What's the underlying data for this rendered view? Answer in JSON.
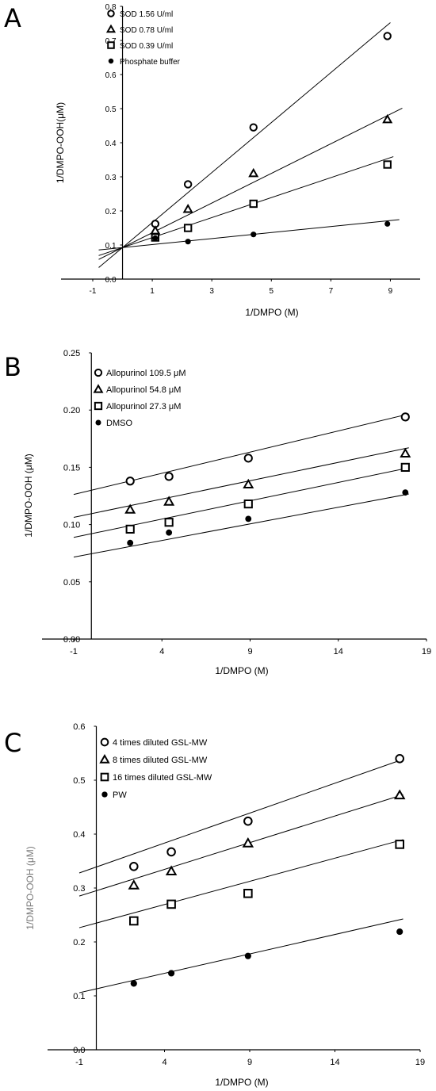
{
  "chart_data": [
    {
      "type": "scatter",
      "panel_label": "A",
      "title": "",
      "xlabel": "1/DMPO (M)",
      "ylabel": "1/DMPO-OOH(μM)",
      "xlim": [
        -1,
        10
      ],
      "ylim": [
        0,
        0.8
      ],
      "x_ticks": [
        "-1",
        "1",
        "3",
        "5",
        "7",
        "9"
      ],
      "y_ticks": [
        "0.0",
        "0.1",
        "0.2",
        "0.3",
        "0.4",
        "0.5",
        "0.6",
        "0.7",
        "0.8"
      ],
      "legend_position": "top-left",
      "series": [
        {
          "name": "SOD 1.56 U/ml",
          "marker": "open-circle",
          "x": [
            1.1,
            2.2,
            4.4,
            8.9
          ],
          "y": [
            0.162,
            0.278,
            0.445,
            0.713
          ],
          "fit": {
            "slope": 0.0733,
            "intercept": 0.0925,
            "x_range": [
              -0.8,
              9.0
            ]
          }
        },
        {
          "name": "SOD 0.78 U/ml",
          "marker": "open-triangle",
          "x": [
            1.1,
            2.2,
            4.4,
            8.9
          ],
          "y": [
            0.142,
            0.205,
            0.31,
            0.468
          ],
          "fit": {
            "slope": 0.0435,
            "intercept": 0.0925,
            "x_range": [
              -0.8,
              9.4
            ]
          }
        },
        {
          "name": "SOD 0.39 U/ml",
          "marker": "open-square",
          "x": [
            1.1,
            2.2,
            4.4,
            8.9
          ],
          "y": [
            0.122,
            0.15,
            0.221,
            0.336
          ],
          "fit": {
            "slope": 0.0293,
            "intercept": 0.0925,
            "x_range": [
              -0.8,
              9.1
            ]
          }
        },
        {
          "name": "Phosphate buffer",
          "marker": "filled-circle",
          "x": [
            1.1,
            2.2,
            4.4,
            8.9
          ],
          "y": [
            0.12,
            0.11,
            0.131,
            0.162
          ],
          "fit": {
            "slope": 0.0088,
            "intercept": 0.0925,
            "x_range": [
              -0.8,
              9.3
            ]
          }
        }
      ]
    },
    {
      "type": "scatter",
      "panel_label": "B",
      "title": "",
      "xlabel": "1/DMPO (M)",
      "ylabel": "1/DMPO-OOH (μM)",
      "xlim": [
        -1,
        19
      ],
      "ylim": [
        0,
        0.25
      ],
      "x_ticks": [
        "-1",
        "4",
        "9",
        "14",
        "19"
      ],
      "y_ticks": [
        "0.00",
        "0.05",
        "0.10",
        "0.15",
        "0.20",
        "0.25"
      ],
      "legend_position": "top-left",
      "series": [
        {
          "name": "Allopurinol 109.5 μM",
          "marker": "open-circle",
          "x": [
            2.2,
            4.4,
            8.9,
            17.8
          ],
          "y": [
            0.138,
            0.142,
            0.158,
            0.194
          ],
          "fit": {
            "slope": 0.0037,
            "intercept": 0.13,
            "x_range": [
              -1,
              18.0
            ]
          }
        },
        {
          "name": "Allopurinol 54.8 μM",
          "marker": "open-triangle",
          "x": [
            2.2,
            4.4,
            8.9,
            17.8
          ],
          "y": [
            0.113,
            0.12,
            0.135,
            0.162
          ],
          "fit": {
            "slope": 0.0032,
            "intercept": 0.1095,
            "x_range": [
              -1,
              18.0
            ]
          }
        },
        {
          "name": "Allopurinol 27.3 μM",
          "marker": "open-square",
          "x": [
            2.2,
            4.4,
            8.9,
            17.8
          ],
          "y": [
            0.096,
            0.102,
            0.118,
            0.15
          ],
          "fit": {
            "slope": 0.0032,
            "intercept": 0.092,
            "x_range": [
              -1,
              18.0
            ]
          }
        },
        {
          "name": "DMSO",
          "marker": "filled-circle",
          "x": [
            2.2,
            4.4,
            8.9,
            17.8
          ],
          "y": [
            0.084,
            0.093,
            0.105,
            0.128
          ],
          "fit": {
            "slope": 0.0029,
            "intercept": 0.0745,
            "x_range": [
              -1,
              18.0
            ]
          }
        }
      ]
    },
    {
      "type": "scatter",
      "panel_label": "C",
      "title": "",
      "xlabel": "1/DMPO (M)",
      "ylabel": "1/DMPO-OOH (μM)",
      "xlim": [
        -1,
        19
      ],
      "ylim": [
        0,
        0.6
      ],
      "x_ticks": [
        "-1",
        "4",
        "9",
        "14",
        "19"
      ],
      "y_ticks": [
        "0.0",
        "0.1",
        "0.2",
        "0.3",
        "0.4",
        "0.5",
        "0.6"
      ],
      "legend_position": "top-left",
      "series": [
        {
          "name": "4 times diluted GSL-MW",
          "marker": "open-circle",
          "x": [
            2.2,
            4.4,
            8.9,
            17.8
          ],
          "y": [
            0.34,
            0.367,
            0.424,
            0.54
          ],
          "fit": {
            "slope": 0.0111,
            "intercept": 0.339,
            "x_range": [
              -1,
              18.0
            ]
          }
        },
        {
          "name": "8 times diluted GSL-MW",
          "marker": "open-triangle",
          "x": [
            2.2,
            4.4,
            8.9,
            17.8
          ],
          "y": [
            0.305,
            0.331,
            0.383,
            0.472
          ],
          "fit": {
            "slope": 0.0099,
            "intercept": 0.295,
            "x_range": [
              -1,
              18.0
            ]
          }
        },
        {
          "name": "16 times diluted GSL-MW",
          "marker": "open-square",
          "x": [
            2.2,
            4.4,
            8.9,
            17.8
          ],
          "y": [
            0.239,
            0.27,
            0.29,
            0.381
          ],
          "fit": {
            "slope": 0.0086,
            "intercept": 0.235,
            "x_range": [
              -1,
              18.0
            ]
          }
        },
        {
          "name": "PW",
          "marker": "filled-circle",
          "x": [
            2.2,
            4.4,
            8.9,
            17.8
          ],
          "y": [
            0.123,
            0.142,
            0.174,
            0.219
          ],
          "fit": {
            "slope": 0.0072,
            "intercept": 0.113,
            "x_range": [
              -1,
              18.0
            ]
          }
        }
      ]
    }
  ]
}
